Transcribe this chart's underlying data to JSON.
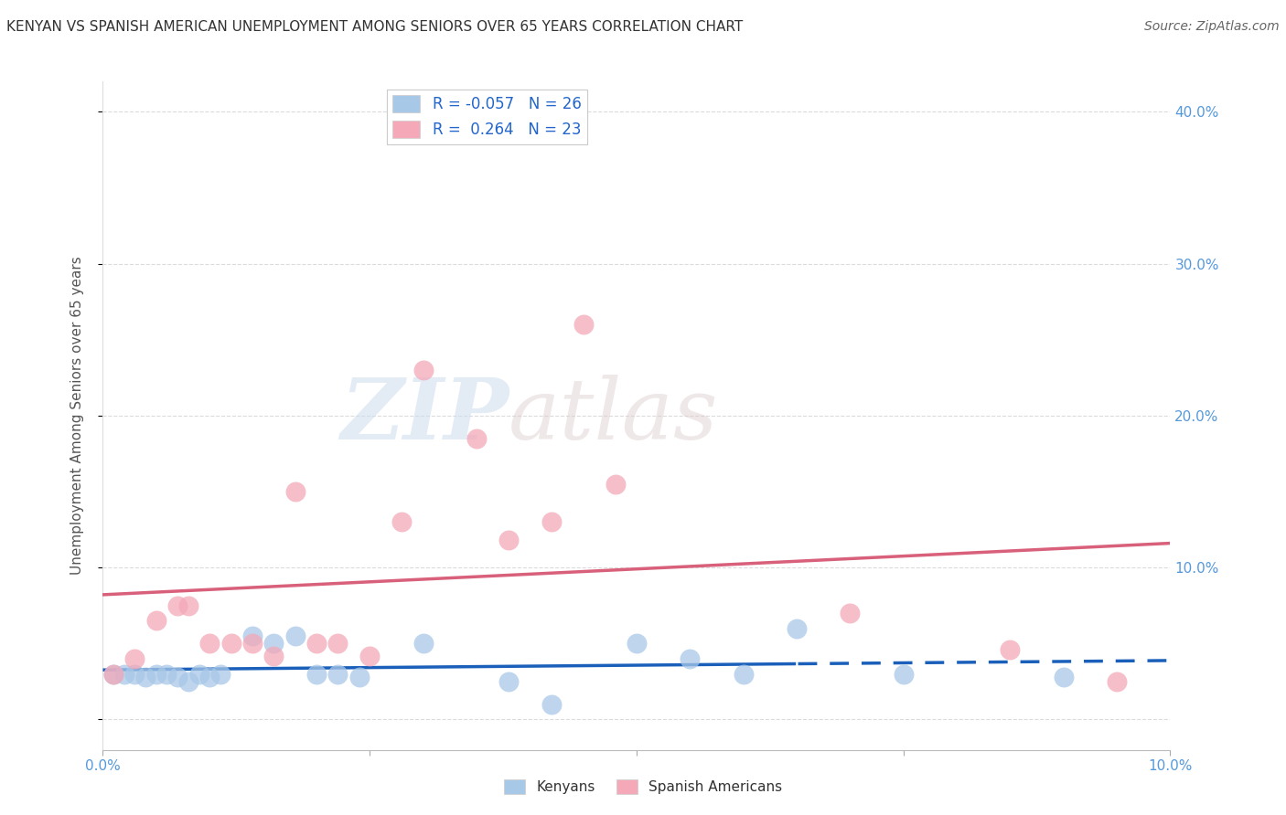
{
  "title": "KENYAN VS SPANISH AMERICAN UNEMPLOYMENT AMONG SENIORS OVER 65 YEARS CORRELATION CHART",
  "source": "Source: ZipAtlas.com",
  "ylabel": "Unemployment Among Seniors over 65 years",
  "xlim": [
    0.0,
    0.1
  ],
  "ylim": [
    -0.02,
    0.42
  ],
  "kenyan_R": -0.057,
  "kenyan_N": 26,
  "spanish_R": 0.264,
  "spanish_N": 23,
  "kenyan_color": "#a8c8e8",
  "spanish_color": "#f4a8b8",
  "kenyan_line_color": "#1a5fba",
  "spanish_line_color": "#d9607a",
  "watermark_zip": "ZIP",
  "watermark_atlas": "atlas",
  "kenyan_x": [
    0.001,
    0.002,
    0.003,
    0.004,
    0.005,
    0.006,
    0.007,
    0.008,
    0.009,
    0.01,
    0.011,
    0.014,
    0.016,
    0.018,
    0.02,
    0.022,
    0.024,
    0.03,
    0.038,
    0.042,
    0.05,
    0.055,
    0.06,
    0.065,
    0.075,
    0.09
  ],
  "kenyan_y": [
    0.03,
    0.03,
    0.03,
    0.028,
    0.03,
    0.03,
    0.028,
    0.025,
    0.03,
    0.028,
    0.03,
    0.055,
    0.05,
    0.055,
    0.03,
    0.03,
    0.028,
    0.05,
    0.025,
    0.01,
    0.05,
    0.04,
    0.03,
    0.06,
    0.03,
    0.028
  ],
  "spanish_x": [
    0.001,
    0.003,
    0.005,
    0.007,
    0.008,
    0.01,
    0.012,
    0.014,
    0.016,
    0.018,
    0.02,
    0.022,
    0.025,
    0.028,
    0.03,
    0.035,
    0.038,
    0.042,
    0.045,
    0.048,
    0.07,
    0.085,
    0.095
  ],
  "spanish_y": [
    0.03,
    0.04,
    0.065,
    0.075,
    0.075,
    0.05,
    0.05,
    0.05,
    0.042,
    0.15,
    0.05,
    0.05,
    0.042,
    0.13,
    0.23,
    0.185,
    0.118,
    0.13,
    0.26,
    0.155,
    0.07,
    0.046,
    0.025
  ],
  "kenyan_line_x_solid_end": 0.065,
  "background_color": "#ffffff",
  "grid_color": "#cccccc",
  "axis_color": "#5599dd",
  "title_color": "#333333"
}
